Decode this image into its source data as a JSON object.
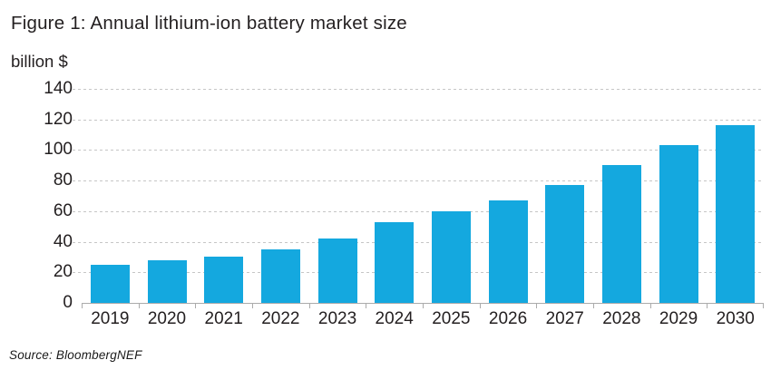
{
  "chart_data": {
    "type": "bar",
    "title": "Figure 1: Annual lithium-ion battery market size",
    "ylabel": "billion $",
    "xlabel": "",
    "categories": [
      "2019",
      "2020",
      "2021",
      "2022",
      "2023",
      "2024",
      "2025",
      "2026",
      "2027",
      "2028",
      "2029",
      "2030"
    ],
    "values": [
      25,
      28,
      30,
      35,
      42,
      53,
      60,
      67,
      77,
      90,
      103,
      116
    ],
    "ylim": [
      0,
      140
    ],
    "yticks": [
      0,
      20,
      40,
      60,
      80,
      100,
      120,
      140
    ],
    "grid": "horizontal-dashed",
    "legend": "none",
    "bar_color": "#14a8df",
    "source": "Source: BloombergNEF"
  },
  "colors": {
    "bar": "#14a8df",
    "text": "#231f20",
    "gridline": "#c6c6c6",
    "axis": "#ababab"
  }
}
